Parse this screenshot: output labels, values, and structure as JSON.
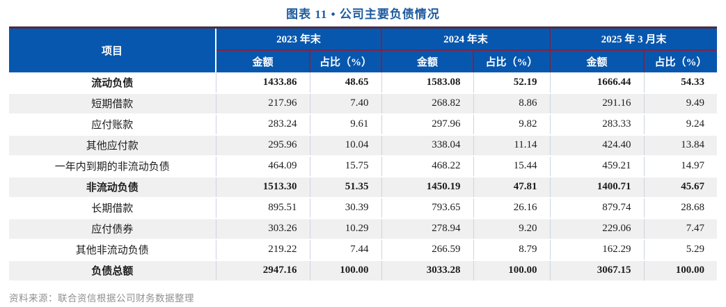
{
  "title": "图表 11 • 公司主要负债情况",
  "colors": {
    "header_bg": "#0857ae",
    "title_text": "#1d5a9e",
    "accent_line": "#7d2446",
    "top_border": "#502a40",
    "alt_row_bg": "#f0f0f0",
    "body_text": "#1c1c1c",
    "source_text": "#909090"
  },
  "table": {
    "item_header": "项目",
    "col_groups": [
      {
        "label": "2023 年末"
      },
      {
        "label": "2024 年末"
      },
      {
        "label": "2025 年 3 月末"
      }
    ],
    "sub_headers": {
      "amount": "金额",
      "ratio": "占比（%）"
    },
    "rows": [
      {
        "label": "流动负债",
        "bold": true,
        "values": [
          "1433.86",
          "48.65",
          "1583.08",
          "52.19",
          "1666.44",
          "54.33"
        ]
      },
      {
        "label": "短期借款",
        "bold": false,
        "values": [
          "217.96",
          "7.40",
          "268.82",
          "8.86",
          "291.16",
          "9.49"
        ]
      },
      {
        "label": "应付账款",
        "bold": false,
        "values": [
          "283.24",
          "9.61",
          "297.96",
          "9.82",
          "283.33",
          "9.24"
        ]
      },
      {
        "label": "其他应付款",
        "bold": false,
        "values": [
          "295.96",
          "10.04",
          "338.04",
          "11.14",
          "424.40",
          "13.84"
        ]
      },
      {
        "label": "一年内到期的非流动负债",
        "bold": false,
        "values": [
          "464.09",
          "15.75",
          "468.22",
          "15.44",
          "459.21",
          "14.97"
        ]
      },
      {
        "label": "非流动负债",
        "bold": true,
        "values": [
          "1513.30",
          "51.35",
          "1450.19",
          "47.81",
          "1400.71",
          "45.67"
        ]
      },
      {
        "label": "长期借款",
        "bold": false,
        "values": [
          "895.51",
          "30.39",
          "793.65",
          "26.16",
          "879.74",
          "28.68"
        ]
      },
      {
        "label": "应付债券",
        "bold": false,
        "values": [
          "303.26",
          "10.29",
          "278.94",
          "9.20",
          "229.06",
          "7.47"
        ]
      },
      {
        "label": "其他非流动负债",
        "bold": false,
        "values": [
          "219.22",
          "7.44",
          "266.59",
          "8.79",
          "162.29",
          "5.29"
        ]
      },
      {
        "label": "负债总额",
        "bold": true,
        "values": [
          "2947.16",
          "100.00",
          "3033.28",
          "100.00",
          "3067.15",
          "100.00"
        ]
      }
    ],
    "source_note": "资料来源：联合资信根据公司财务数据整理"
  }
}
